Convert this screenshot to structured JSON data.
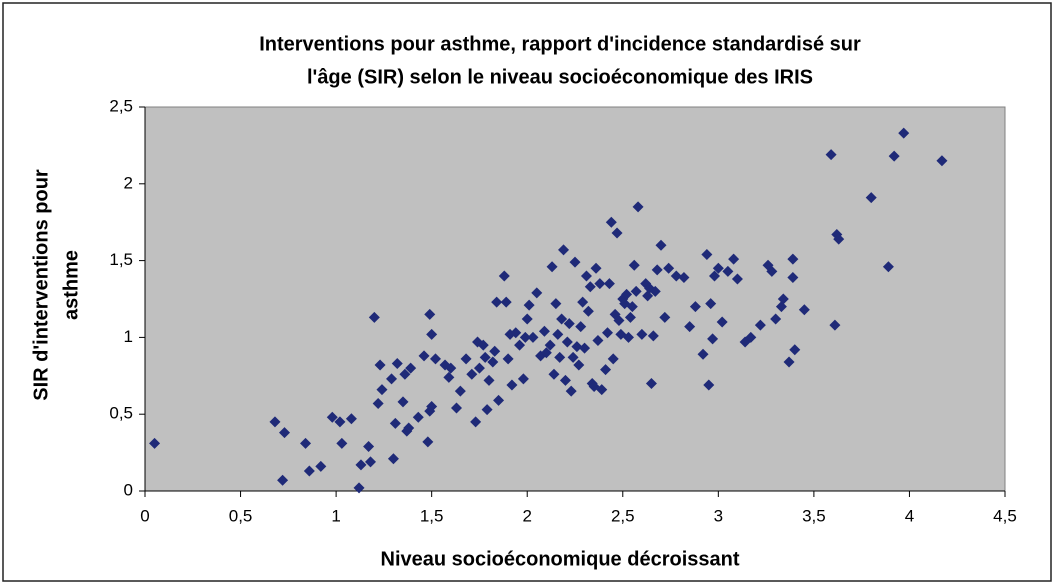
{
  "chart_data": {
    "type": "scatter",
    "title": [
      "Interventions pour asthme, rapport d'incidence standardisé sur",
      "l'âge (SIR) selon le niveau socioéconomique des IRIS"
    ],
    "xlabel": "Niveau socioéconomique décroissant",
    "ylabel": [
      "SIR d'interventions pour",
      "asthme"
    ],
    "color": "#1f2a78",
    "grid": false,
    "xlim": [
      0,
      4.5
    ],
    "xticks": [
      0,
      {
        "value": 0.5,
        "label": "0,5"
      },
      1,
      {
        "value": 1.5,
        "label": "1,5"
      },
      2,
      {
        "value": 2.5,
        "label": "2,5"
      },
      3,
      {
        "value": 3.5,
        "label": "3,5"
      },
      4,
      {
        "value": 4.5,
        "label": "4,5"
      }
    ],
    "ylim": [
      0,
      2.5
    ],
    "yticks": [
      0,
      {
        "value": 0.5,
        "label": "0,5"
      },
      1,
      {
        "value": 1.5,
        "label": "1,5"
      },
      2,
      {
        "value": 2.5,
        "label": "2,5"
      }
    ],
    "x": [
      0.05,
      0.68,
      0.72,
      0.73,
      0.84,
      0.86,
      0.92,
      0.98,
      1.02,
      1.03,
      1.08,
      1.12,
      1.13,
      1.17,
      1.18,
      1.2,
      1.22,
      1.23,
      1.24,
      1.29,
      1.3,
      1.31,
      1.32,
      1.35,
      1.36,
      1.37,
      1.38,
      1.39,
      1.43,
      1.46,
      1.48,
      1.49,
      1.49,
      1.5,
      1.5,
      1.52,
      1.57,
      1.59,
      1.6,
      1.63,
      1.65,
      1.68,
      1.71,
      1.73,
      1.74,
      1.75,
      1.77,
      1.78,
      1.79,
      1.8,
      1.82,
      1.83,
      1.84,
      1.85,
      1.88,
      1.89,
      1.9,
      1.91,
      1.92,
      1.94,
      1.96,
      1.98,
      1.99,
      2.0,
      2.01,
      2.03,
      2.05,
      2.07,
      2.09,
      2.1,
      2.12,
      2.13,
      2.14,
      2.15,
      2.16,
      2.17,
      2.18,
      2.19,
      2.2,
      2.21,
      2.22,
      2.23,
      2.24,
      2.25,
      2.26,
      2.27,
      2.28,
      2.29,
      2.3,
      2.31,
      2.32,
      2.33,
      2.34,
      2.35,
      2.36,
      2.37,
      2.38,
      2.39,
      2.41,
      2.42,
      2.43,
      2.44,
      2.45,
      2.46,
      2.47,
      2.48,
      2.49,
      2.5,
      2.51,
      2.52,
      2.53,
      2.54,
      2.55,
      2.56,
      2.57,
      2.58,
      2.6,
      2.62,
      2.63,
      2.64,
      2.65,
      2.66,
      2.67,
      2.68,
      2.7,
      2.72,
      2.74,
      2.78,
      2.82,
      2.85,
      2.88,
      2.92,
      2.94,
      2.95,
      2.96,
      2.97,
      2.98,
      3.0,
      3.02,
      3.05,
      3.08,
      3.1,
      3.14,
      3.17,
      3.22,
      3.26,
      3.28,
      3.3,
      3.33,
      3.34,
      3.37,
      3.39,
      3.39,
      3.4,
      3.45,
      3.59,
      3.61,
      3.62,
      3.63,
      3.8,
      3.89,
      3.92,
      3.97,
      4.17
    ],
    "values": [
      0.31,
      0.45,
      0.07,
      0.38,
      0.31,
      0.13,
      0.16,
      0.48,
      0.45,
      0.31,
      0.47,
      0.02,
      0.17,
      0.29,
      0.19,
      1.13,
      0.57,
      0.82,
      0.66,
      0.73,
      0.21,
      0.44,
      0.83,
      0.58,
      0.76,
      0.39,
      0.41,
      0.8,
      0.48,
      0.88,
      0.32,
      0.52,
      1.15,
      1.02,
      0.55,
      0.86,
      0.82,
      0.74,
      0.8,
      0.54,
      0.65,
      0.86,
      0.76,
      0.45,
      0.97,
      0.8,
      0.95,
      0.87,
      0.53,
      0.72,
      0.84,
      0.91,
      1.23,
      0.59,
      1.4,
      1.23,
      0.86,
      1.02,
      0.69,
      1.03,
      0.95,
      0.73,
      1.0,
      1.12,
      1.21,
      1.0,
      1.29,
      0.88,
      1.04,
      0.9,
      0.95,
      1.46,
      0.76,
      1.22,
      1.02,
      0.87,
      1.12,
      1.57,
      0.72,
      0.97,
      1.09,
      0.65,
      0.87,
      1.49,
      0.94,
      0.82,
      1.07,
      1.23,
      0.93,
      1.4,
      1.17,
      1.33,
      0.7,
      0.68,
      1.45,
      0.98,
      1.35,
      0.66,
      0.79,
      1.03,
      1.35,
      1.75,
      0.86,
      1.15,
      1.68,
      1.11,
      1.02,
      1.25,
      1.22,
      1.28,
      1.0,
      1.13,
      1.2,
      1.47,
      1.3,
      1.85,
      1.02,
      1.35,
      1.27,
      1.32,
      0.7,
      1.01,
      1.3,
      1.44,
      1.6,
      1.13,
      1.45,
      1.4,
      1.39,
      1.07,
      1.2,
      0.89,
      1.54,
      0.69,
      1.22,
      0.99,
      1.4,
      1.45,
      1.1,
      1.43,
      1.51,
      1.38,
      0.97,
      1.0,
      1.08,
      1.47,
      1.43,
      1.12,
      1.2,
      1.25,
      0.84,
      1.51,
      1.39,
      0.92,
      1.18,
      2.19,
      1.08,
      1.67,
      1.64,
      1.91,
      1.46,
      2.18,
      2.33,
      2.15
    ]
  }
}
